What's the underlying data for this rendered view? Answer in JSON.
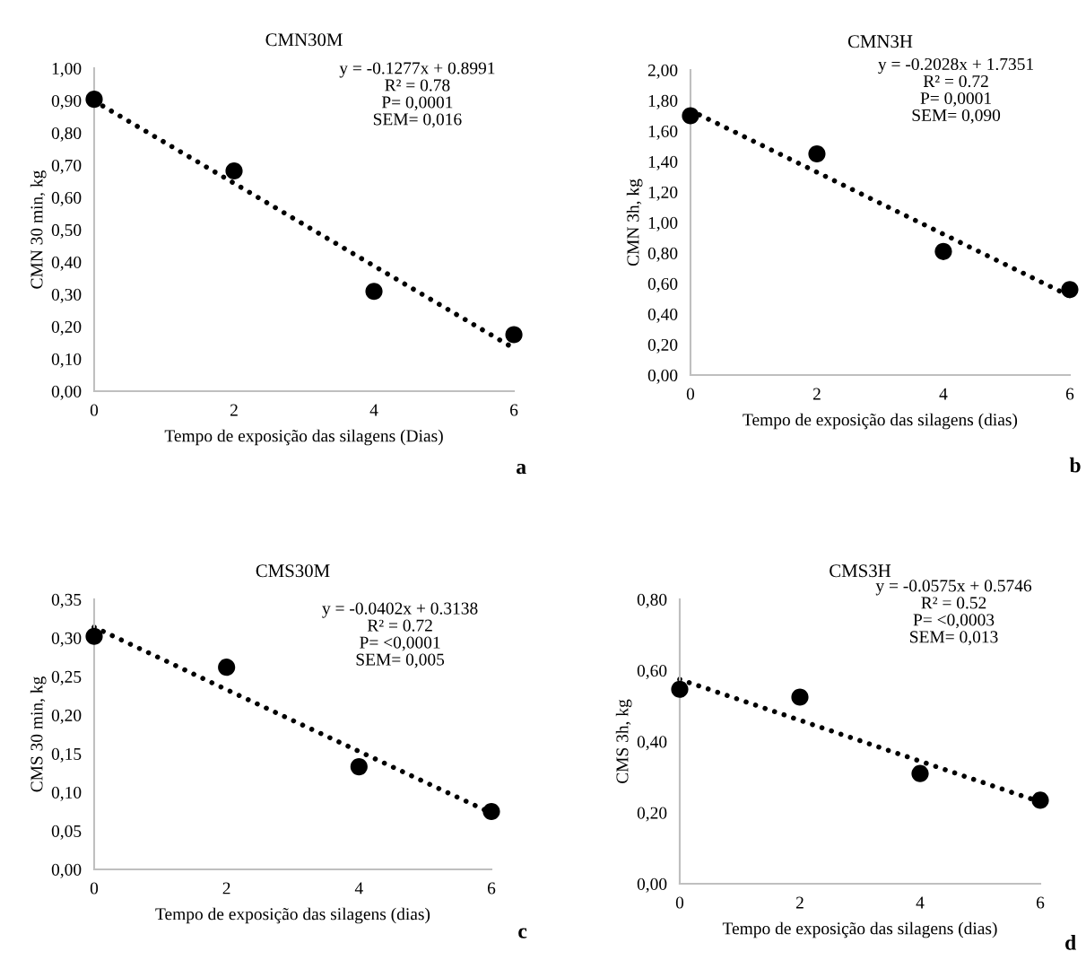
{
  "chart_data": [
    {
      "type": "scatter",
      "title": "CMN30M",
      "xlabel": "Tempo de exposição das silagens (Dias)",
      "ylabel": "CMN 30 min, kg",
      "x": [
        0,
        2,
        4,
        6
      ],
      "xlim": [
        0,
        6
      ],
      "xticks": [
        0,
        2,
        4,
        6
      ],
      "ylim": [
        0,
        1.0
      ],
      "yticks": [
        {
          "value": 0,
          "label": "0,00"
        },
        {
          "value": 0.1,
          "label": "0,10"
        },
        {
          "value": 0.2,
          "label": "0,20"
        },
        {
          "value": 0.3,
          "label": "0,30"
        },
        {
          "value": 0.4,
          "label": "0,40"
        },
        {
          "value": 0.5,
          "label": "0,50"
        },
        {
          "value": 0.6,
          "label": "0,60"
        },
        {
          "value": 0.7,
          "label": "0,70"
        },
        {
          "value": 0.8,
          "label": "0,80"
        },
        {
          "value": 0.9,
          "label": "0,90"
        },
        {
          "value": 1.0,
          "label": "1,00"
        }
      ],
      "grid": false,
      "legend": false,
      "series": [
        {
          "type": "scatter",
          "marker": "circle",
          "color": "#000000",
          "values": [
            0.904,
            0.682,
            0.309,
            0.175
          ]
        },
        {
          "type": "line",
          "marker": "none",
          "line_style": "dotted",
          "color": "#000000",
          "values": [
            0.899,
            0.644,
            0.388,
            0.133
          ]
        }
      ],
      "annotations": [
        "y = -0.1277x + 0.8991",
        "R² = 0.78",
        "P= 0,0001",
        "SEM= 0,016",
        "a"
      ]
    },
    {
      "type": "scatter",
      "title": "CMN3H",
      "xlabel": "Tempo de exposição das silagens (dias)",
      "ylabel": "CMN 3h, kg",
      "x": [
        0,
        2,
        4,
        6
      ],
      "xlim": [
        0,
        6
      ],
      "xticks": [
        0,
        2,
        4,
        6
      ],
      "ylim": [
        0,
        2.0
      ],
      "yticks": [
        {
          "value": 0,
          "label": "0,00"
        },
        {
          "value": 0.2,
          "label": "0,20"
        },
        {
          "value": 0.4,
          "label": "0,40"
        },
        {
          "value": 0.6,
          "label": "0,60"
        },
        {
          "value": 0.8,
          "label": "0,80"
        },
        {
          "value": 1.0,
          "label": "1,00"
        },
        {
          "value": 1.2,
          "label": "1,20"
        },
        {
          "value": 1.4,
          "label": "1,40"
        },
        {
          "value": 1.6,
          "label": "1,60"
        },
        {
          "value": 1.8,
          "label": "1,80"
        },
        {
          "value": 2.0,
          "label": "2,00"
        }
      ],
      "grid": false,
      "legend": false,
      "series": [
        {
          "type": "scatter",
          "marker": "circle",
          "color": "#000000",
          "values": [
            1.7,
            1.45,
            0.81,
            0.56
          ]
        },
        {
          "type": "line",
          "marker": "none",
          "line_style": "dotted",
          "color": "#000000",
          "values": [
            1.735,
            1.33,
            0.924,
            0.518
          ]
        }
      ],
      "annotations": [
        "y = -0.2028x + 1.7351",
        "R² = 0.72",
        "P= 0,0001",
        "SEM= 0,090",
        "b"
      ]
    },
    {
      "type": "scatter",
      "title": "CMS30M",
      "xlabel": "Tempo de exposição das silagens (dias)",
      "ylabel": "CMS 30 min, kg",
      "x": [
        0,
        2,
        4,
        6
      ],
      "xlim": [
        0,
        6
      ],
      "xticks": [
        0,
        2,
        4,
        6
      ],
      "ylim": [
        0,
        0.35
      ],
      "yticks": [
        {
          "value": 0,
          "label": "0,00"
        },
        {
          "value": 0.05,
          "label": "0,05"
        },
        {
          "value": 0.1,
          "label": "0,10"
        },
        {
          "value": 0.15,
          "label": "0,15"
        },
        {
          "value": 0.2,
          "label": "0,20"
        },
        {
          "value": 0.25,
          "label": "0,25"
        },
        {
          "value": 0.3,
          "label": "0,30"
        },
        {
          "value": 0.35,
          "label": "0,35"
        }
      ],
      "grid": false,
      "legend": false,
      "series": [
        {
          "type": "scatter",
          "marker": "circle",
          "color": "#000000",
          "values": [
            0.302,
            0.262,
            0.133,
            0.075
          ]
        },
        {
          "type": "line",
          "marker": "none",
          "line_style": "dotted",
          "color": "#000000",
          "values": [
            0.314,
            0.233,
            0.153,
            0.073
          ]
        }
      ],
      "annotations": [
        "y = -0.0402x + 0.3138",
        "R² = 0.72",
        "P= <0,0001",
        "SEM= 0,005",
        "c"
      ]
    },
    {
      "type": "scatter",
      "title": "CMS3H",
      "xlabel": "Tempo de exposição das silagens (dias)",
      "ylabel": "CMS 3h, kg",
      "x": [
        0,
        2,
        4,
        6
      ],
      "xlim": [
        0,
        6
      ],
      "xticks": [
        0,
        2,
        4,
        6
      ],
      "ylim": [
        0,
        0.8
      ],
      "yticks": [
        {
          "value": 0,
          "label": "0,00"
        },
        {
          "value": 0.2,
          "label": "0,20"
        },
        {
          "value": 0.4,
          "label": "0,40"
        },
        {
          "value": 0.6,
          "label": "0,60"
        },
        {
          "value": 0.8,
          "label": "0,80"
        }
      ],
      "grid": false,
      "legend": false,
      "series": [
        {
          "type": "scatter",
          "marker": "circle",
          "color": "#000000",
          "values": [
            0.547,
            0.525,
            0.31,
            0.235
          ]
        },
        {
          "type": "line",
          "marker": "none",
          "line_style": "dotted",
          "color": "#000000",
          "values": [
            0.575,
            0.46,
            0.345,
            0.23
          ]
        }
      ],
      "annotations": [
        "y = -0.0575x + 0.5746",
        "R² = 0.52",
        "P= <0,0003",
        "SEM= 0,013",
        "d"
      ]
    }
  ]
}
